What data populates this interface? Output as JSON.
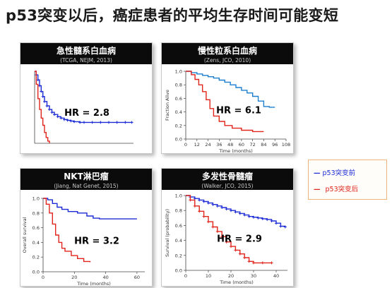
{
  "slide": {
    "title": "p53突变以后，癌症患者的平均生存时间可能变短"
  },
  "legend": {
    "before_label": "p53突变前",
    "before_color": "#1d2bd6",
    "after_label": "p53突变后",
    "after_color": "#e0251c"
  },
  "chart_data": [
    {
      "id": "aml",
      "type": "line",
      "title": "急性髓系白血病",
      "subtitle": "(TCGA, NEJM, 2013)",
      "annotation": "HR = 2.8",
      "xlabel": "",
      "ylabel": "",
      "xlim": [
        0,
        120
      ],
      "ylim": [
        0,
        1
      ],
      "xticks": [],
      "yticks": [],
      "series": [
        {
          "color": "#1d2bd6",
          "markers": true,
          "x": [
            0,
            2,
            4,
            6,
            8,
            10,
            12,
            15,
            18,
            21,
            24,
            28,
            32,
            36,
            40,
            44,
            48,
            55,
            60,
            70,
            80,
            90,
            100,
            110,
            118
          ],
          "y": [
            1.0,
            0.95,
            0.88,
            0.8,
            0.72,
            0.65,
            0.58,
            0.52,
            0.47,
            0.43,
            0.4,
            0.37,
            0.35,
            0.33,
            0.32,
            0.31,
            0.3,
            0.29,
            0.29,
            0.29,
            0.29,
            0.29,
            0.29,
            0.29,
            0.29
          ]
        },
        {
          "color": "#e0251c",
          "markers": false,
          "x": [
            0,
            2,
            4,
            6,
            8,
            10,
            12,
            14,
            16,
            18
          ],
          "y": [
            1.0,
            0.82,
            0.62,
            0.47,
            0.35,
            0.25,
            0.15,
            0.08,
            0.03,
            0.0
          ]
        }
      ]
    },
    {
      "id": "cll",
      "type": "line",
      "title": "慢性粒系白血病",
      "subtitle": "(Zens, JCO, 2010)",
      "annotation": "HR = 6.1",
      "xlabel": "Time (months)",
      "ylabel": "Fraction Alive",
      "xlim": [
        0,
        108
      ],
      "ylim": [
        0,
        1
      ],
      "xticks": [
        0,
        12,
        24,
        36,
        48,
        60,
        72,
        84,
        96,
        108
      ],
      "yticks": [
        0,
        0.2,
        0.4,
        0.6,
        0.8,
        1.0
      ],
      "ytick_labels": [
        "0.0",
        "0.2",
        "0.4",
        "0.6",
        "0.8",
        "1.0"
      ],
      "series": [
        {
          "color": "#1b7fd0",
          "markers": false,
          "x": [
            0,
            6,
            12,
            18,
            24,
            30,
            36,
            42,
            48,
            54,
            60,
            66,
            72,
            78,
            84,
            90,
            96
          ],
          "y": [
            1.0,
            0.98,
            0.96,
            0.94,
            0.92,
            0.9,
            0.87,
            0.84,
            0.8,
            0.76,
            0.72,
            0.68,
            0.63,
            0.56,
            0.48,
            0.47,
            0.47
          ]
        },
        {
          "color": "#e0251c",
          "markers": false,
          "x": [
            0,
            6,
            10,
            14,
            18,
            22,
            26,
            30,
            36,
            42,
            50,
            60,
            72,
            84
          ],
          "y": [
            1.0,
            0.95,
            0.88,
            0.8,
            0.7,
            0.58,
            0.45,
            0.34,
            0.26,
            0.2,
            0.16,
            0.13,
            0.11,
            0.11
          ]
        }
      ]
    },
    {
      "id": "nkt",
      "type": "line",
      "title": "NKT淋巴瘤",
      "subtitle": "(Jiang, Nat Genet, 2015)",
      "annotation": "HR = 3.2",
      "xlabel": "Time (months)",
      "ylabel": "Overall survival",
      "xlim": [
        0,
        65
      ],
      "ylim": [
        0,
        1
      ],
      "xticks": [
        0,
        20,
        40,
        60
      ],
      "yticks": [
        0,
        0.2,
        0.4,
        0.6,
        0.8,
        1.0
      ],
      "ytick_labels": [
        "0.0",
        "0.2",
        "0.4",
        "0.6",
        "0.8",
        "1.0"
      ],
      "series": [
        {
          "color": "#1d2bd6",
          "markers": false,
          "x": [
            0,
            3,
            6,
            9,
            12,
            16,
            22,
            28,
            32,
            36,
            45,
            55,
            60
          ],
          "y": [
            1.0,
            0.98,
            0.93,
            0.88,
            0.85,
            0.82,
            0.8,
            0.76,
            0.73,
            0.72,
            0.72,
            0.72,
            0.72
          ]
        },
        {
          "color": "#e0251c",
          "markers": false,
          "x": [
            0,
            2,
            4,
            6,
            8,
            10,
            12,
            14,
            18,
            22,
            26,
            30
          ],
          "y": [
            1.0,
            0.92,
            0.8,
            0.65,
            0.5,
            0.4,
            0.32,
            0.28,
            0.22,
            0.18,
            0.14,
            0.13
          ]
        }
      ]
    },
    {
      "id": "mm",
      "type": "line",
      "title": "多发性骨髓瘤",
      "subtitle": "(Walker, JCO, 2015)",
      "annotation": "HR = 2.9",
      "xlabel": "Time (months)",
      "ylabel": "Survival (probability)",
      "xlim": [
        0,
        45
      ],
      "ylim": [
        0,
        1
      ],
      "xticks": [
        0,
        10,
        20,
        30,
        40
      ],
      "yticks": [
        0,
        0.2,
        0.4,
        0.6,
        0.8,
        1.0
      ],
      "ytick_labels": [
        "0.0",
        "0.2",
        "0.4",
        "0.6",
        "0.8",
        "1.0"
      ],
      "series": [
        {
          "color": "#1d2bd6",
          "markers": true,
          "x": [
            0,
            2,
            4,
            6,
            8,
            10,
            12,
            14,
            16,
            18,
            20,
            22,
            24,
            26,
            28,
            30,
            32,
            34,
            36,
            38,
            40,
            42,
            44
          ],
          "y": [
            1.0,
            0.98,
            0.96,
            0.94,
            0.92,
            0.9,
            0.88,
            0.86,
            0.84,
            0.82,
            0.8,
            0.78,
            0.76,
            0.74,
            0.72,
            0.71,
            0.7,
            0.69,
            0.68,
            0.66,
            0.63,
            0.59,
            0.58
          ]
        },
        {
          "color": "#e0251c",
          "markers": true,
          "x": [
            0,
            2,
            4,
            6,
            8,
            10,
            12,
            14,
            16,
            18,
            20,
            22,
            24,
            26,
            28,
            30,
            34,
            38
          ],
          "y": [
            1.0,
            0.94,
            0.86,
            0.79,
            0.72,
            0.65,
            0.58,
            0.52,
            0.45,
            0.38,
            0.32,
            0.27,
            0.22,
            0.17,
            0.12,
            0.1,
            0.1,
            0.1
          ]
        }
      ]
    }
  ]
}
